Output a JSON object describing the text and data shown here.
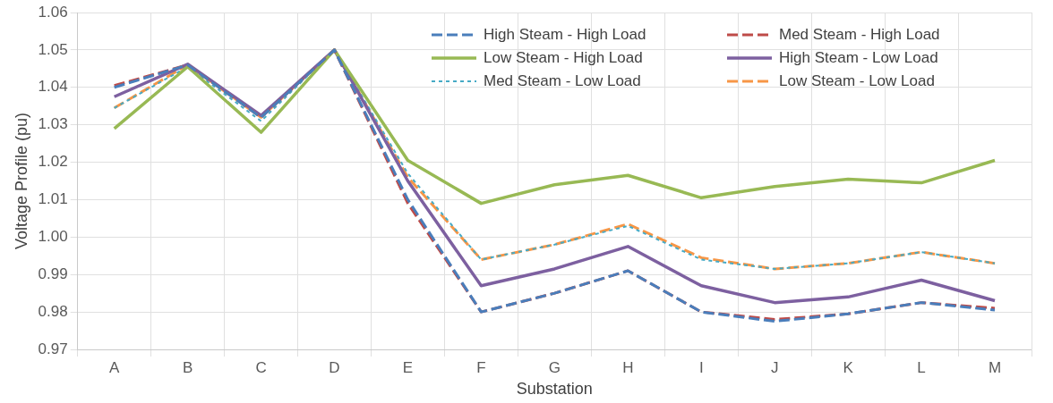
{
  "chart_data": {
    "type": "line",
    "xlabel": "Substation",
    "ylabel": "Voltage Profile (pu)",
    "categories": [
      "A",
      "B",
      "C",
      "D",
      "E",
      "F",
      "G",
      "H",
      "I",
      "J",
      "K",
      "L",
      "M"
    ],
    "ylim": [
      0.97,
      1.06
    ],
    "yticks": [
      0.97,
      0.98,
      0.99,
      {
        "value": 1.0,
        "label": "1.00"
      },
      1.01,
      1.02,
      1.03,
      1.04,
      1.05,
      1.06
    ],
    "grid": true,
    "legend": "top right",
    "marker": "none",
    "series": [
      {
        "name": "High Steam - High Load",
        "color": "#4a7ebb",
        "line_style": "dashed",
        "values": [
          1.04,
          1.046,
          1.032,
          1.05,
          1.01,
          0.98,
          0.985,
          0.991,
          0.98,
          0.9775,
          0.9795,
          0.9825,
          0.9805
        ]
      },
      {
        "name": "Med Steam - High Load",
        "color": "#be4b48",
        "line_style": "dashed",
        "values": [
          1.0405,
          1.046,
          1.032,
          1.05,
          1.009,
          0.98,
          0.985,
          0.991,
          0.98,
          0.978,
          0.9795,
          0.9825,
          0.981
        ]
      },
      {
        "name": "Low Steam - High Load",
        "color": "#98b954",
        "line_style": "solid",
        "values": [
          1.029,
          1.0455,
          1.028,
          1.05,
          1.0205,
          1.009,
          1.014,
          1.0165,
          1.0105,
          1.0135,
          1.0155,
          1.0145,
          1.0205
        ]
      },
      {
        "name": "High Steam - Low Load",
        "color": "#7d60a0",
        "line_style": "solid",
        "values": [
          1.0375,
          1.0462,
          1.0325,
          1.05,
          1.015,
          0.987,
          0.9915,
          0.9975,
          0.987,
          0.9825,
          0.984,
          0.9885,
          0.983
        ]
      },
      {
        "name": "Med Steam - Low Load",
        "color": "#46aac5",
        "line_style": "dotted",
        "values": [
          1.0345,
          1.0455,
          1.031,
          1.05,
          1.017,
          0.994,
          0.998,
          1.003,
          0.994,
          0.9915,
          0.993,
          0.996,
          0.993
        ]
      },
      {
        "name": "Low Steam - Low Load",
        "color": "#f79646",
        "line_style": "dashed",
        "values": [
          1.0345,
          1.046,
          1.032,
          1.05,
          1.016,
          0.994,
          0.998,
          1.0035,
          0.9945,
          0.9915,
          0.993,
          0.996,
          0.993
        ]
      }
    ]
  }
}
